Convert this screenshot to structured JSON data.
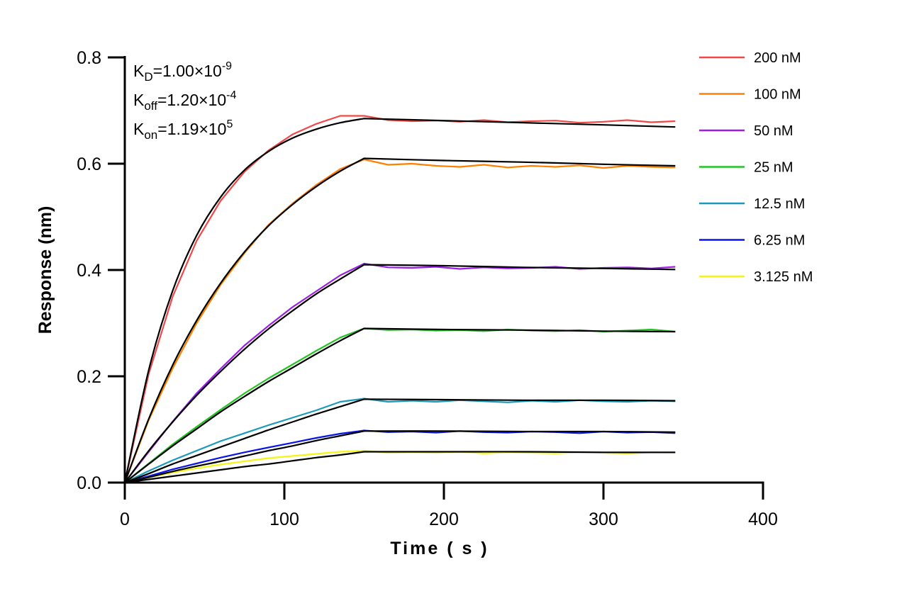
{
  "chart_data": {
    "type": "line",
    "title": "",
    "xlabel": "Time ( s )",
    "ylabel": "Response (nm)",
    "xlim": [
      0,
      400
    ],
    "ylim": [
      0,
      0.8
    ],
    "xticks": [
      "0",
      "100",
      "200",
      "300",
      "400"
    ],
    "yticks": [
      "0.0",
      "0.2",
      "0.4",
      "0.6",
      "0.8"
    ],
    "grid": false,
    "legend_position": "top-right",
    "annotation": {
      "kd": {
        "base": "K",
        "sub": "D",
        "value": "=1.00×10",
        "exp": "-9"
      },
      "koff": {
        "base": "K",
        "sub": "off",
        "value": "=1.20×10",
        "exp": "-4"
      },
      "kon": {
        "base": "K",
        "sub": "on",
        "value": "=1.19×10",
        "exp": "5"
      }
    },
    "fit_color": "#000000",
    "measured_t": [
      0,
      15,
      30,
      45,
      60,
      75,
      90,
      105,
      120,
      135,
      150,
      165,
      180,
      195,
      210,
      225,
      240,
      255,
      270,
      285,
      300,
      315,
      330,
      345
    ],
    "fit_t": [
      0,
      15,
      30,
      45,
      60,
      75,
      90,
      105,
      120,
      135,
      150,
      200,
      250,
      300,
      345
    ],
    "series": [
      {
        "name": "200 nM",
        "color": "#f04848",
        "measured": [
          0,
          0.205,
          0.35,
          0.455,
          0.53,
          0.585,
          0.625,
          0.655,
          0.675,
          0.69,
          0.69,
          0.682,
          0.68,
          0.681,
          0.679,
          0.682,
          0.678,
          0.68,
          0.681,
          0.677,
          0.679,
          0.682,
          0.678,
          0.68
        ],
        "fit": [
          0,
          0.212,
          0.361,
          0.465,
          0.537,
          0.588,
          0.623,
          0.648,
          0.665,
          0.677,
          0.685,
          0.681,
          0.677,
          0.673,
          0.669
        ]
      },
      {
        "name": "100 nM",
        "color": "#ff8000",
        "measured": [
          0,
          0.118,
          0.215,
          0.3,
          0.372,
          0.432,
          0.485,
          0.525,
          0.56,
          0.59,
          0.608,
          0.598,
          0.6,
          0.596,
          0.594,
          0.598,
          0.593,
          0.596,
          0.594,
          0.597,
          0.592,
          0.596,
          0.594,
          0.593
        ],
        "fit": [
          0,
          0.12,
          0.221,
          0.305,
          0.375,
          0.434,
          0.483,
          0.523,
          0.557,
          0.586,
          0.61,
          0.606,
          0.603,
          0.599,
          0.596
        ]
      },
      {
        "name": "50 nM",
        "color": "#9a1ee6",
        "measured": [
          0,
          0.058,
          0.115,
          0.168,
          0.214,
          0.258,
          0.295,
          0.33,
          0.36,
          0.39,
          0.412,
          0.405,
          0.404,
          0.406,
          0.402,
          0.405,
          0.403,
          0.404,
          0.406,
          0.402,
          0.404,
          0.405,
          0.403,
          0.406
        ],
        "fit": [
          0,
          0.06,
          0.114,
          0.164,
          0.209,
          0.251,
          0.289,
          0.323,
          0.355,
          0.383,
          0.41,
          0.408,
          0.405,
          0.403,
          0.401
        ]
      },
      {
        "name": "25 nM",
        "color": "#22c422",
        "measured": [
          0,
          0.036,
          0.072,
          0.105,
          0.137,
          0.168,
          0.196,
          0.222,
          0.248,
          0.273,
          0.29,
          0.287,
          0.288,
          0.286,
          0.287,
          0.285,
          0.288,
          0.286,
          0.285,
          0.287,
          0.284,
          0.286,
          0.288,
          0.284
        ],
        "fit": [
          0,
          0.035,
          0.069,
          0.101,
          0.133,
          0.162,
          0.19,
          0.216,
          0.242,
          0.267,
          0.29,
          0.288,
          0.287,
          0.285,
          0.284
        ]
      },
      {
        "name": "12.5 nM",
        "color": "#1a9aba",
        "measured": [
          0,
          0.022,
          0.042,
          0.06,
          0.078,
          0.093,
          0.108,
          0.122,
          0.136,
          0.152,
          0.158,
          0.152,
          0.154,
          0.152,
          0.155,
          0.153,
          0.151,
          0.154,
          0.152,
          0.155,
          0.153,
          0.152,
          0.154,
          0.153
        ],
        "fit": [
          0,
          0.017,
          0.035,
          0.051,
          0.067,
          0.083,
          0.099,
          0.114,
          0.129,
          0.143,
          0.157,
          0.156,
          0.155,
          0.155,
          0.154
        ]
      },
      {
        "name": "6.25 nM",
        "color": "#0a14e6",
        "measured": [
          0,
          0.012,
          0.025,
          0.036,
          0.047,
          0.057,
          0.066,
          0.075,
          0.084,
          0.092,
          0.098,
          0.095,
          0.096,
          0.094,
          0.097,
          0.095,
          0.094,
          0.096,
          0.095,
          0.093,
          0.096,
          0.094,
          0.095,
          0.093
        ],
        "fit": [
          0,
          0.01,
          0.021,
          0.031,
          0.04,
          0.05,
          0.06,
          0.069,
          0.079,
          0.088,
          0.097,
          0.097,
          0.096,
          0.096,
          0.095
        ]
      },
      {
        "name": "3.125 nM",
        "color": "#f5f514",
        "measured": [
          0,
          0.01,
          0.019,
          0.027,
          0.034,
          0.04,
          0.046,
          0.05,
          0.054,
          0.058,
          0.06,
          0.056,
          0.057,
          0.056,
          0.058,
          0.055,
          0.057,
          0.056,
          0.055,
          0.057,
          0.056,
          0.055,
          0.057,
          0.056
        ],
        "fit": [
          0,
          0.006,
          0.012,
          0.018,
          0.024,
          0.03,
          0.035,
          0.041,
          0.047,
          0.052,
          0.058,
          0.058,
          0.058,
          0.057,
          0.057
        ]
      }
    ]
  }
}
